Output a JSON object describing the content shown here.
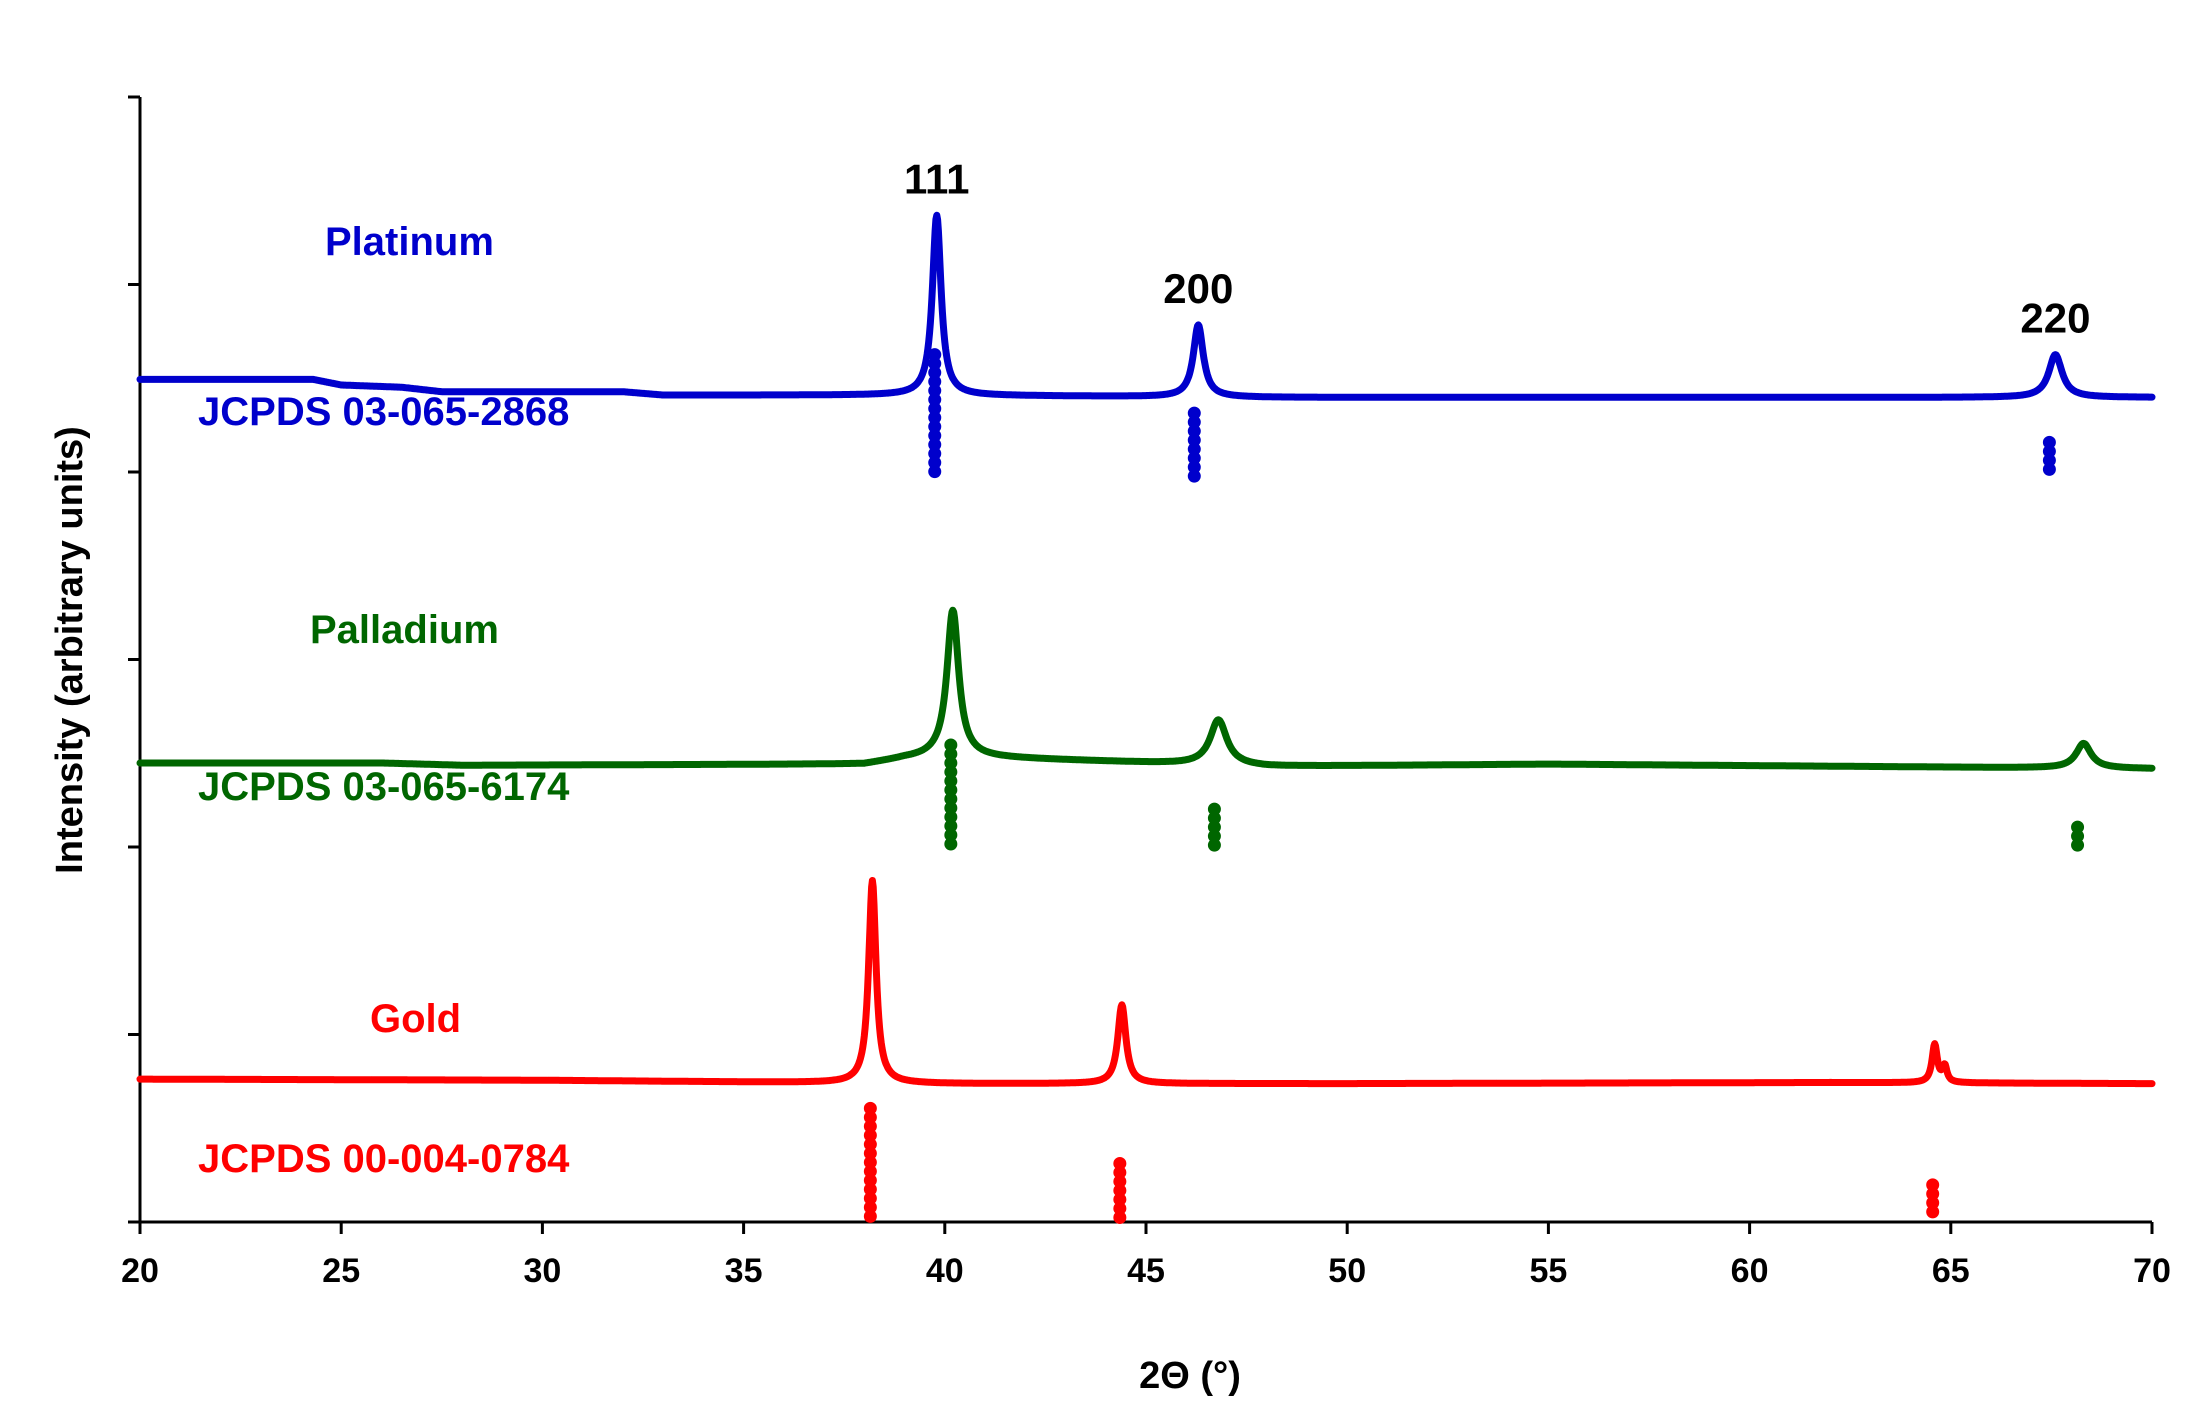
{
  "chart_data": {
    "type": "line",
    "xlabel": "2Θ (°)",
    "ylabel": "Intensity (arbitrary units)",
    "xlim": [
      20,
      70
    ],
    "xticks": [
      "20",
      "25",
      "30",
      "35",
      "40",
      "45",
      "50",
      "55",
      "60",
      "65",
      "70"
    ],
    "y_tick_count": 7,
    "grid": false,
    "legend": "none",
    "peak_labels": [
      {
        "text": "111",
        "x": 39.8
      },
      {
        "text": "200",
        "x": 46.3
      },
      {
        "text": "220",
        "x": 67.6
      }
    ],
    "series": [
      {
        "name": "Platinum",
        "color": "#0000cc",
        "baseline": 0.745,
        "drift": [
          [
            20,
            0.749
          ],
          [
            24.3,
            0.749
          ],
          [
            25,
            0.744
          ],
          [
            26.5,
            0.742
          ],
          [
            27.5,
            0.738
          ],
          [
            32,
            0.738
          ],
          [
            33,
            0.735
          ],
          [
            39,
            0.735
          ],
          [
            48,
            0.733
          ],
          [
            70,
            0.733
          ]
        ],
        "peaks": [
          {
            "x": 39.8,
            "height": 0.16,
            "width": 0.26
          },
          {
            "x": 46.3,
            "height": 0.064,
            "width": 0.3
          },
          {
            "x": 67.6,
            "height": 0.038,
            "width": 0.4
          }
        ]
      },
      {
        "name": "Palladium",
        "color": "#006600",
        "baseline": 0.407,
        "drift": [
          [
            20,
            0.408
          ],
          [
            26,
            0.408
          ],
          [
            28,
            0.406
          ],
          [
            38,
            0.407
          ],
          [
            39,
            0.412
          ],
          [
            40,
            0.414
          ],
          [
            48,
            0.405
          ],
          [
            55,
            0.407
          ],
          [
            70,
            0.403
          ]
        ],
        "peaks": [
          {
            "x": 40.2,
            "height": 0.13,
            "width": 0.35
          },
          {
            "x": 46.8,
            "height": 0.04,
            "width": 0.5
          },
          {
            "x": 68.3,
            "height": 0.022,
            "width": 0.45
          }
        ]
      },
      {
        "name": "Gold",
        "color": "#ff0000",
        "baseline": 0.127,
        "drift": [
          [
            20,
            0.127
          ],
          [
            30,
            0.126
          ],
          [
            40,
            0.123
          ],
          [
            50,
            0.123
          ],
          [
            62,
            0.124
          ],
          [
            70,
            0.123
          ]
        ],
        "peaks": [
          {
            "x": 38.2,
            "height": 0.18,
            "width": 0.22
          },
          {
            "x": 44.4,
            "height": 0.07,
            "width": 0.24
          },
          {
            "x": 64.6,
            "height": 0.034,
            "width": 0.16
          },
          {
            "x": 64.85,
            "height": 0.014,
            "width": 0.13
          }
        ]
      }
    ],
    "reference_patterns": [
      {
        "name": "JCPDS 03-065-2868",
        "color": "#0000cc",
        "bottom": 0.662,
        "lines": [
          {
            "x": 39.75,
            "top": 0.771
          },
          {
            "x": 46.2,
            "top": 0.719
          },
          {
            "x": 67.45,
            "top": 0.693
          }
        ]
      },
      {
        "name": "JCPDS 03-065-6174",
        "color": "#006600",
        "bottom": 0.33,
        "lines": [
          {
            "x": 40.15,
            "top": 0.424
          },
          {
            "x": 46.7,
            "top": 0.367
          },
          {
            "x": 68.15,
            "top": 0.351
          }
        ]
      },
      {
        "name": "JCPDS 00-004-0784",
        "color": "#ff0000",
        "bottom": 0.003,
        "lines": [
          {
            "x": 38.15,
            "top": 0.101
          },
          {
            "x": 44.35,
            "top": 0.052
          },
          {
            "x": 64.55,
            "top": 0.033
          }
        ]
      }
    ]
  }
}
